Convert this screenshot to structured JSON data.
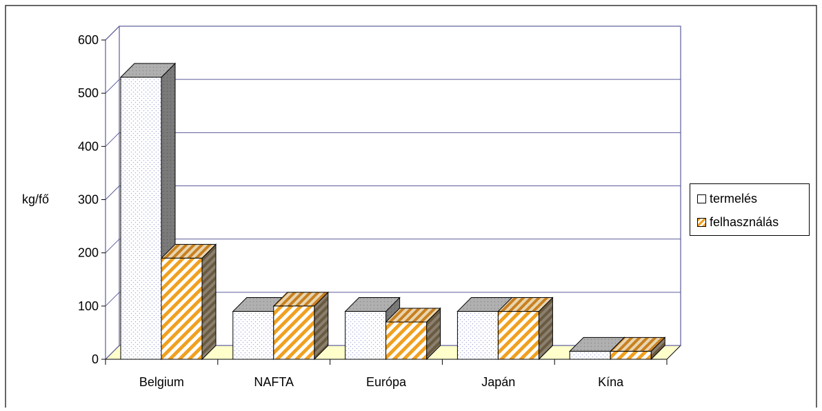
{
  "chart_data": {
    "type": "bar",
    "categories": [
      "Belgium",
      "NAFTA",
      "Európa",
      "Japán",
      "Kína"
    ],
    "series": [
      {
        "name": "termelés",
        "values": [
          530,
          90,
          90,
          90,
          15
        ],
        "color": "#ffffff",
        "pattern": "dots"
      },
      {
        "name": "felhasználás",
        "values": [
          190,
          100,
          70,
          90,
          15
        ],
        "color": "#f0a020",
        "pattern": "diagonal-stripes"
      }
    ],
    "ylabel": "kg/fő",
    "xlabel": "",
    "ylim": [
      0,
      600
    ],
    "yticks": [
      "0",
      "100",
      "200",
      "300",
      "400",
      "500",
      "600"
    ],
    "grid": true,
    "legend_position": "right",
    "three_d": true,
    "floor_color": "#ffffcc",
    "wall_line_color": "#5a5a9a"
  }
}
